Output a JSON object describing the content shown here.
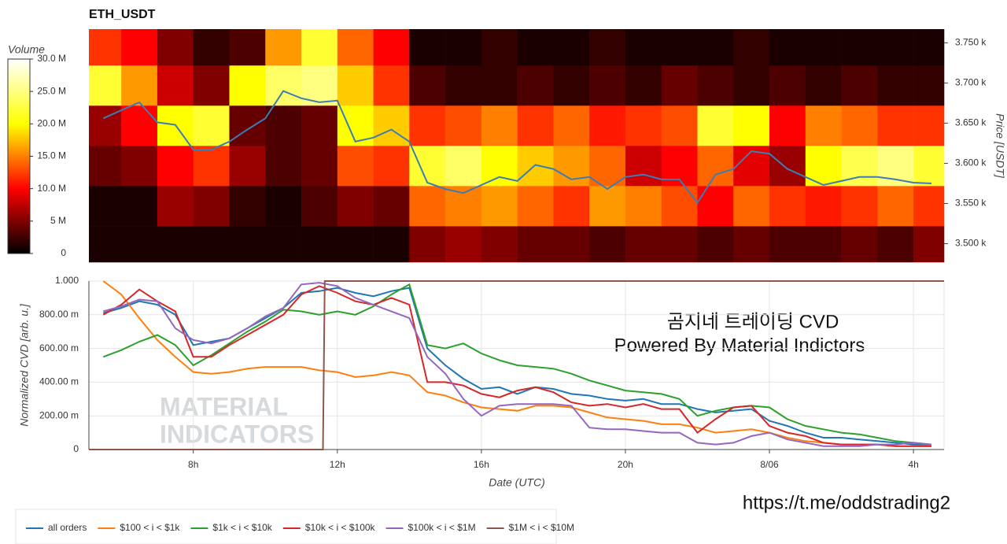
{
  "chart_data": [
    {
      "type": "heatmap",
      "title": "ETH_USDT",
      "xlim": [
        5.1,
        28.85
      ],
      "x_bins": [
        5.1,
        6,
        7,
        8,
        9,
        10,
        11,
        12,
        13,
        14,
        15,
        16,
        17,
        18,
        19,
        20,
        21,
        22,
        23,
        24,
        25,
        26,
        27,
        28,
        28.85
      ],
      "y_bins": [
        3477,
        3522,
        3572,
        3622,
        3672,
        3722,
        3767
      ],
      "z": [
        [
          1,
          1,
          1,
          1,
          1,
          1,
          1,
          1,
          1,
          5,
          6,
          5,
          4,
          4,
          3,
          4,
          4,
          3,
          4,
          3,
          3,
          4,
          3,
          5
        ],
        [
          1,
          1,
          6,
          5,
          2,
          1,
          3,
          5,
          4,
          14,
          15,
          16,
          14,
          12,
          16,
          15,
          13,
          10,
          14,
          12,
          11,
          12,
          14,
          12
        ],
        [
          4,
          5,
          10,
          12,
          6,
          3,
          4,
          13,
          12,
          22,
          24,
          20,
          18,
          16,
          14,
          8,
          10,
          14,
          9,
          6,
          20,
          23,
          25,
          22
        ],
        [
          6,
          10,
          20,
          22,
          4,
          3,
          4,
          20,
          18,
          12,
          13,
          15,
          12,
          14,
          11,
          12,
          13,
          22,
          20,
          10,
          15,
          14,
          12,
          12
        ],
        [
          22,
          16,
          8,
          5,
          20,
          24,
          25,
          18,
          12,
          3,
          2,
          2,
          3,
          2,
          3,
          2,
          4,
          3,
          2,
          3,
          2,
          3,
          2,
          2
        ],
        [
          12,
          10,
          5,
          2,
          3,
          16,
          22,
          14,
          10,
          1,
          1,
          2,
          1,
          1,
          2,
          1,
          1,
          1,
          2,
          1,
          1,
          1,
          1,
          1
        ]
      ],
      "colorscale": [
        "#000000",
        "#ff0000",
        "#ffff00",
        "#ffffff"
      ],
      "colorbar": {
        "label": "Volume",
        "lim": [
          0,
          30
        ],
        "ticks": [
          0,
          {
            "value": 5,
            "label": "5 M"
          },
          {
            "value": 10,
            "label": "10.0 M"
          },
          {
            "value": 15,
            "label": "15.0 M"
          },
          {
            "value": 20,
            "label": "20.0 M"
          },
          {
            "value": 25,
            "label": "25.0 M"
          },
          {
            "value": 30,
            "label": "30.0 M"
          }
        ]
      },
      "ylim": [
        3477,
        3767
      ],
      "yticks": [
        {
          "value": 3500,
          "label": "3.500 k"
        },
        {
          "value": 3550,
          "label": "3.550 k"
        },
        {
          "value": 3600,
          "label": "3.600 k"
        },
        {
          "value": 3650,
          "label": "3.650 k"
        },
        {
          "value": 3700,
          "label": "3.700 k"
        },
        {
          "value": 3750,
          "label": "3.750 k"
        }
      ],
      "ylabel": "Price [USDT]",
      "line": {
        "color": "#3b7db4",
        "x": [
          5.5,
          6,
          6.5,
          7,
          7.5,
          8,
          8.5,
          9,
          9.5,
          10,
          10.5,
          11,
          11.5,
          12,
          12.5,
          13,
          13.5,
          14,
          14.5,
          15,
          15.5,
          16,
          16.5,
          17,
          17.5,
          18,
          18.5,
          19,
          19.5,
          20,
          20.5,
          21,
          21.5,
          22,
          22.5,
          23,
          23.5,
          24,
          24.5,
          25,
          25.5,
          26,
          26.5,
          27,
          27.5,
          28,
          28.5
        ],
        "values": [
          3656,
          3666,
          3676,
          3651,
          3648,
          3617,
          3617,
          3627,
          3642,
          3656,
          3690,
          3681,
          3676,
          3678,
          3627,
          3632,
          3642,
          3627,
          3576,
          3568,
          3563,
          3573,
          3583,
          3578,
          3598,
          3593,
          3580,
          3583,
          3568,
          3583,
          3586,
          3580,
          3580,
          3551,
          3586,
          3593,
          3615,
          3612,
          3593,
          3583,
          3573,
          3578,
          3583,
          3583,
          3580,
          3576,
          3575
        ]
      }
    },
    {
      "type": "line",
      "xlim": [
        5.1,
        28.85
      ],
      "xticks": [
        {
          "value": 8,
          "label": "8h"
        },
        {
          "value": 12,
          "label": "12h"
        },
        {
          "value": 16,
          "label": "16h"
        },
        {
          "value": 20,
          "label": "20h"
        },
        {
          "value": 24,
          "label": "8/06"
        },
        {
          "value": 28,
          "label": "4h"
        }
      ],
      "xlabel": "Date (UTC)",
      "ylim": [
        0,
        1
      ],
      "yticks": [
        0,
        {
          "value": 0.2,
          "label": "200.00 m"
        },
        {
          "value": 0.4,
          "label": "400.00 m"
        },
        {
          "value": 0.6,
          "label": "600.00 m"
        },
        {
          "value": 0.8,
          "label": "800.00 m"
        },
        {
          "value": 1,
          "label": "1.000"
        }
      ],
      "ylabel": "Normalized CVD [arb. u.]",
      "grid": true,
      "legend": "bottom",
      "x": [
        5.5,
        6,
        6.5,
        7,
        7.5,
        8,
        8.5,
        9,
        9.5,
        10,
        10.5,
        11,
        11.5,
        12,
        12.5,
        13,
        13.5,
        14,
        14.5,
        15,
        15.5,
        16,
        16.5,
        17,
        17.5,
        18,
        18.5,
        19,
        19.5,
        20,
        20.5,
        21,
        21.5,
        22,
        22.5,
        23,
        23.5,
        24,
        24.5,
        25,
        25.5,
        26,
        26.5,
        27,
        27.5,
        28,
        28.5
      ],
      "series": [
        {
          "name": "all orders",
          "color": "#1f77b4",
          "values": [
            0.81,
            0.84,
            0.88,
            0.86,
            0.8,
            0.62,
            0.64,
            0.66,
            0.72,
            0.78,
            0.84,
            0.93,
            0.94,
            0.96,
            0.93,
            0.91,
            0.94,
            0.96,
            0.6,
            0.5,
            0.42,
            0.36,
            0.37,
            0.33,
            0.37,
            0.36,
            0.33,
            0.32,
            0.3,
            0.29,
            0.3,
            0.27,
            0.27,
            0.24,
            0.22,
            0.23,
            0.24,
            0.17,
            0.14,
            0.1,
            0.07,
            0.07,
            0.06,
            0.05,
            0.04,
            0.03,
            0.03
          ]
        },
        {
          "name": "$100 < i < $1k",
          "color": "#ff7f0e",
          "values": [
            1.0,
            0.92,
            0.78,
            0.65,
            0.55,
            0.46,
            0.45,
            0.46,
            0.48,
            0.49,
            0.49,
            0.49,
            0.47,
            0.46,
            0.43,
            0.44,
            0.46,
            0.44,
            0.34,
            0.32,
            0.28,
            0.25,
            0.24,
            0.23,
            0.26,
            0.26,
            0.25,
            0.22,
            0.19,
            0.18,
            0.17,
            0.15,
            0.15,
            0.13,
            0.1,
            0.11,
            0.12,
            0.1,
            0.07,
            0.05,
            0.04,
            0.03,
            0.03,
            0.03,
            0.02,
            0.02,
            0.02
          ]
        },
        {
          "name": "$1k < i < $10k",
          "color": "#2ca02c",
          "values": [
            0.55,
            0.59,
            0.64,
            0.68,
            0.62,
            0.5,
            0.56,
            0.63,
            0.7,
            0.76,
            0.83,
            0.82,
            0.8,
            0.82,
            0.8,
            0.85,
            0.92,
            0.98,
            0.62,
            0.6,
            0.63,
            0.57,
            0.53,
            0.5,
            0.49,
            0.48,
            0.45,
            0.41,
            0.38,
            0.35,
            0.34,
            0.33,
            0.3,
            0.2,
            0.23,
            0.25,
            0.26,
            0.25,
            0.18,
            0.14,
            0.12,
            0.1,
            0.09,
            0.07,
            0.05,
            0.04,
            0.03
          ]
        },
        {
          "name": "$10k < i < $100k",
          "color": "#d62728",
          "values": [
            0.8,
            0.86,
            0.95,
            0.88,
            0.82,
            0.55,
            0.55,
            0.62,
            0.68,
            0.74,
            0.8,
            0.92,
            0.97,
            0.93,
            0.88,
            0.86,
            0.9,
            0.86,
            0.4,
            0.4,
            0.38,
            0.33,
            0.31,
            0.35,
            0.37,
            0.34,
            0.28,
            0.26,
            0.27,
            0.25,
            0.27,
            0.24,
            0.24,
            0.1,
            0.18,
            0.25,
            0.26,
            0.14,
            0.1,
            0.08,
            0.04,
            0.03,
            0.03,
            0.03,
            0.02,
            0.02,
            0.02
          ]
        },
        {
          "name": "$100k < i < $1M",
          "color": "#9467bd",
          "values": [
            0.82,
            0.85,
            0.89,
            0.88,
            0.72,
            0.65,
            0.63,
            0.66,
            0.72,
            0.79,
            0.84,
            0.98,
            0.99,
            0.97,
            0.9,
            0.86,
            0.82,
            0.78,
            0.55,
            0.45,
            0.3,
            0.2,
            0.26,
            0.27,
            0.27,
            0.27,
            0.26,
            0.13,
            0.12,
            0.12,
            0.11,
            0.1,
            0.1,
            0.04,
            0.03,
            0.04,
            0.08,
            0.1,
            0.06,
            0.04,
            0.02,
            0.02,
            0.02,
            0.03,
            0.03,
            0.04,
            0.03
          ]
        },
        {
          "name": "$1M < i < $10M",
          "color": "#8c564b",
          "x": [
            5.1,
            11.6,
            11.65,
            28.85
          ],
          "values": [
            0,
            0,
            1,
            1
          ]
        }
      ],
      "annotations": [
        "곰지네 트레이딩 CVD",
        "Powered By Material Indictors",
        "https://t.me/oddstrading2"
      ],
      "watermark": [
        "MATERIAL",
        "INDICATORS"
      ]
    }
  ]
}
